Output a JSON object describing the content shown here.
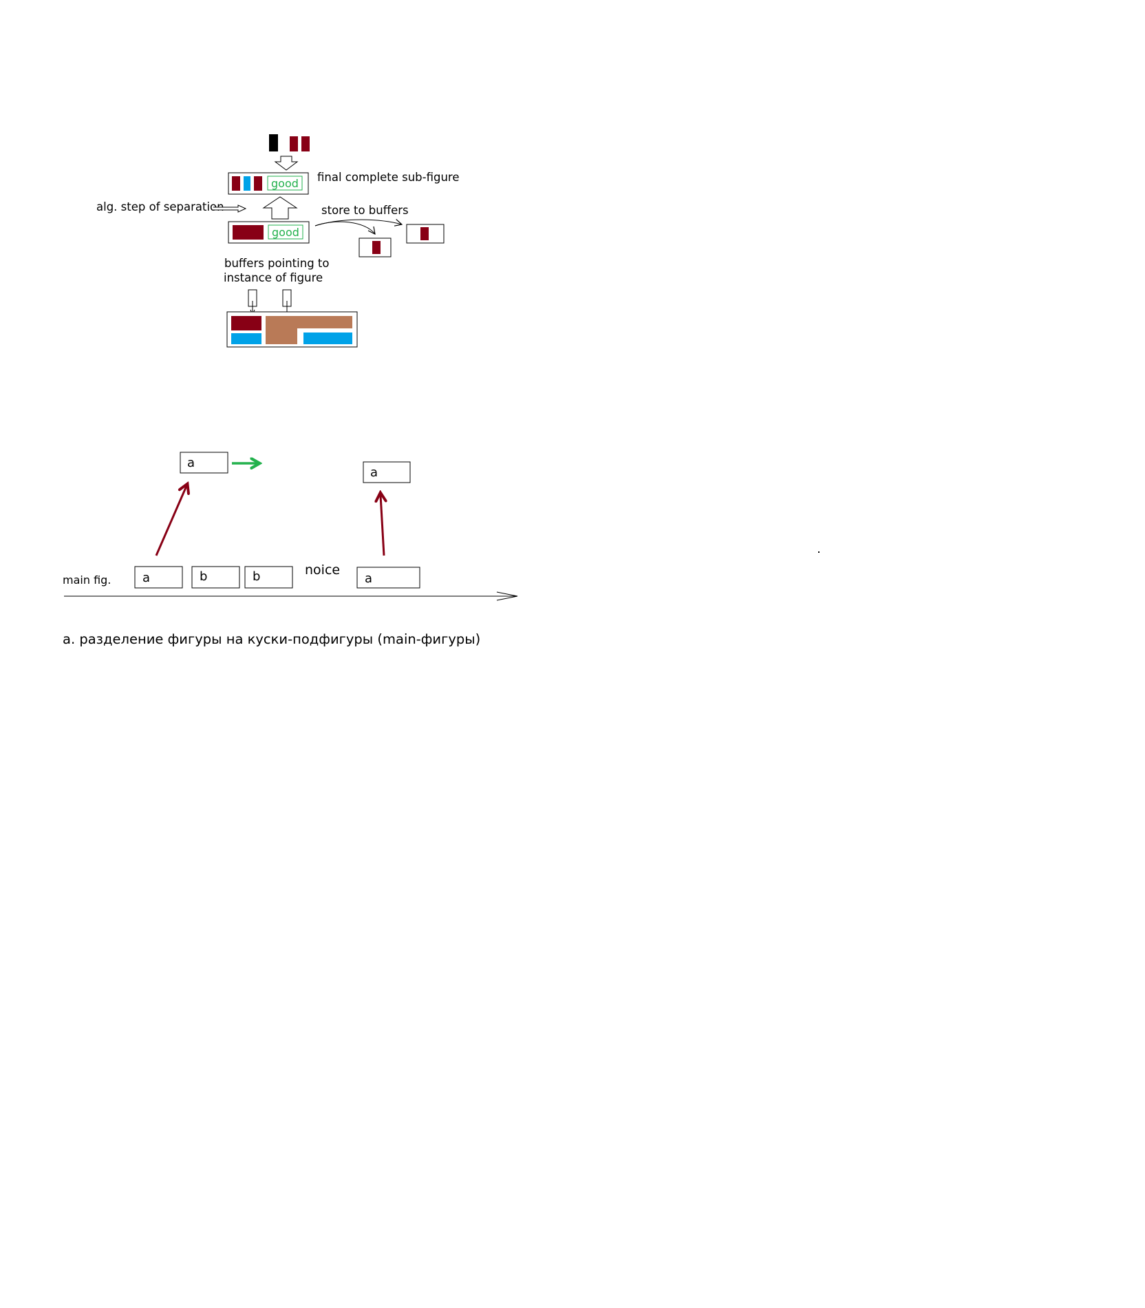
{
  "colors": {
    "dark_red": "#880015",
    "light_blue": "#00a2e8",
    "brown": "#b97a57",
    "green": "#22b14c",
    "black": "#000000"
  },
  "top_diagram": {
    "final_label": "final complete sub-figure",
    "alg_step_label": "alg. step of separation",
    "store_label": "store to buffers",
    "buffers_label_line1": "buffers pointing to",
    "buffers_label_line2": "instance of figure",
    "good_label_1": "good",
    "good_label_2": "good"
  },
  "bottom_diagram": {
    "upper_box_left": "a",
    "upper_box_right": "a",
    "main_fig_label": "main fig.",
    "box_1": "a",
    "box_2": "b",
    "box_3": "b",
    "noice_label": "noice",
    "box_4": "a"
  },
  "caption": "a. разделение фигуры на куски-подфигуры (main-фигуры)"
}
